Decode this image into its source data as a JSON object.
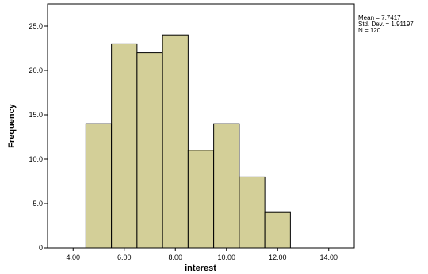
{
  "chart_data": {
    "type": "bar",
    "subtype": "histogram",
    "xlabel": "interest",
    "ylabel": "Frequency",
    "bins": [
      {
        "from": 4.5,
        "to": 5.5,
        "value": 14
      },
      {
        "from": 5.5,
        "to": 6.5,
        "value": 23
      },
      {
        "from": 6.5,
        "to": 7.5,
        "value": 22
      },
      {
        "from": 7.5,
        "to": 8.5,
        "value": 24
      },
      {
        "from": 8.5,
        "to": 9.5,
        "value": 11
      },
      {
        "from": 9.5,
        "to": 10.5,
        "value": 14
      },
      {
        "from": 10.5,
        "to": 11.5,
        "value": 8
      },
      {
        "from": 11.5,
        "to": 12.5,
        "value": 4
      }
    ],
    "xlim": [
      3.0,
      15.0
    ],
    "ylim": [
      0,
      27.5
    ],
    "xticks": [
      4,
      6,
      8,
      10,
      12,
      14
    ],
    "xtick_labels": [
      "4.00",
      "6.00",
      "8.00",
      "10.00",
      "12.00",
      "14.00"
    ],
    "yticks": [
      0,
      5,
      10,
      15,
      20,
      25
    ],
    "ytick_labels": [
      "0",
      "5.0",
      "10.0",
      "15.0",
      "20.0",
      "25.0"
    ],
    "grid": false,
    "bar_color": "#d3cf98",
    "bar_edge_color": "#000000",
    "stats": {
      "mean": "Mean = 7.7417",
      "std": "Std. Dev. = 1.91197",
      "n": "N = 120"
    }
  }
}
